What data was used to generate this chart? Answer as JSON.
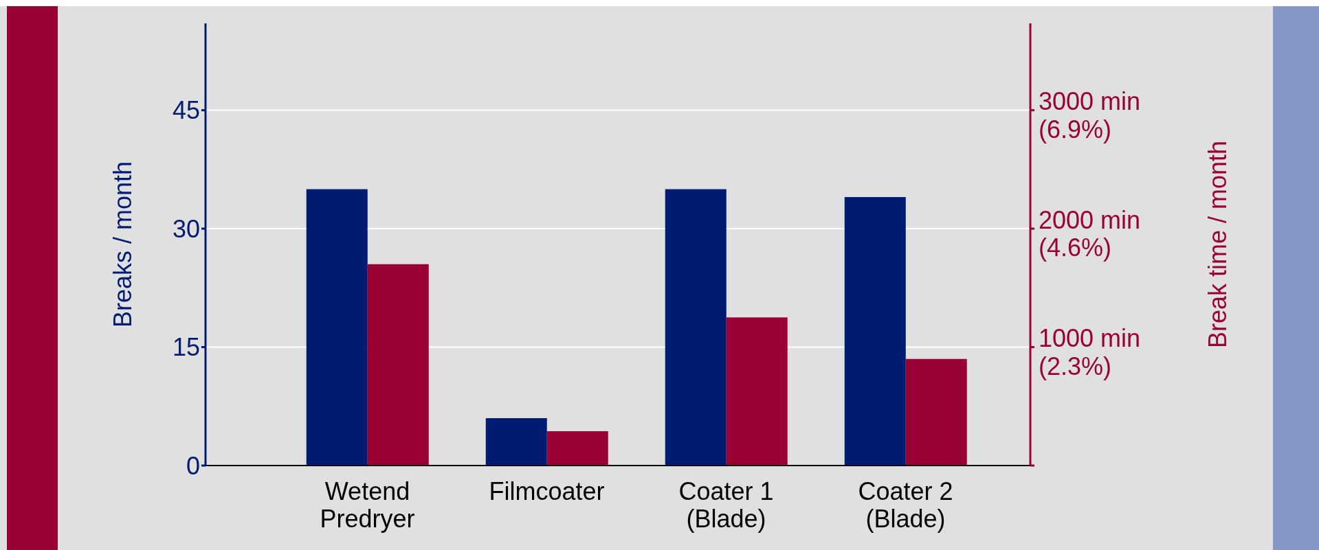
{
  "chart_data": {
    "type": "bar",
    "ylabel": "Breaks / month",
    "y2label": "Break time / month",
    "categories": [
      "Wetend\nPredryer",
      "Filmcoater",
      "Coater 1\n(Blade)",
      "Coater 2\n(Blade)"
    ],
    "series": [
      {
        "color": "#001c72",
        "values": [
          35,
          6,
          35,
          34
        ],
        "axis": "y"
      },
      {
        "color": "#990033",
        "values": [
          1700,
          290,
          1250,
          900
        ],
        "axis": "y2"
      }
    ],
    "ylim": [
      0,
      56
    ],
    "yticks": [
      0,
      15,
      30,
      45
    ],
    "y2lim": [
      0,
      3733
    ],
    "y2ticks": [
      {
        "value": 0,
        "label": null
      },
      {
        "value": 1000,
        "label": "1000 min"
      },
      {
        "value": 2000,
        "label": "2000 min"
      },
      {
        "value": 3000,
        "label": "3000 min"
      }
    ],
    "y3lim": [
      0,
      8.59
    ],
    "y3ticks": [
      {
        "value": 2.3,
        "label": "(2.3%)"
      },
      {
        "value": 4.6,
        "label": "(4.6%)"
      },
      {
        "value": 6.9,
        "label": "(6.9%)"
      }
    ],
    "grid": "y"
  }
}
